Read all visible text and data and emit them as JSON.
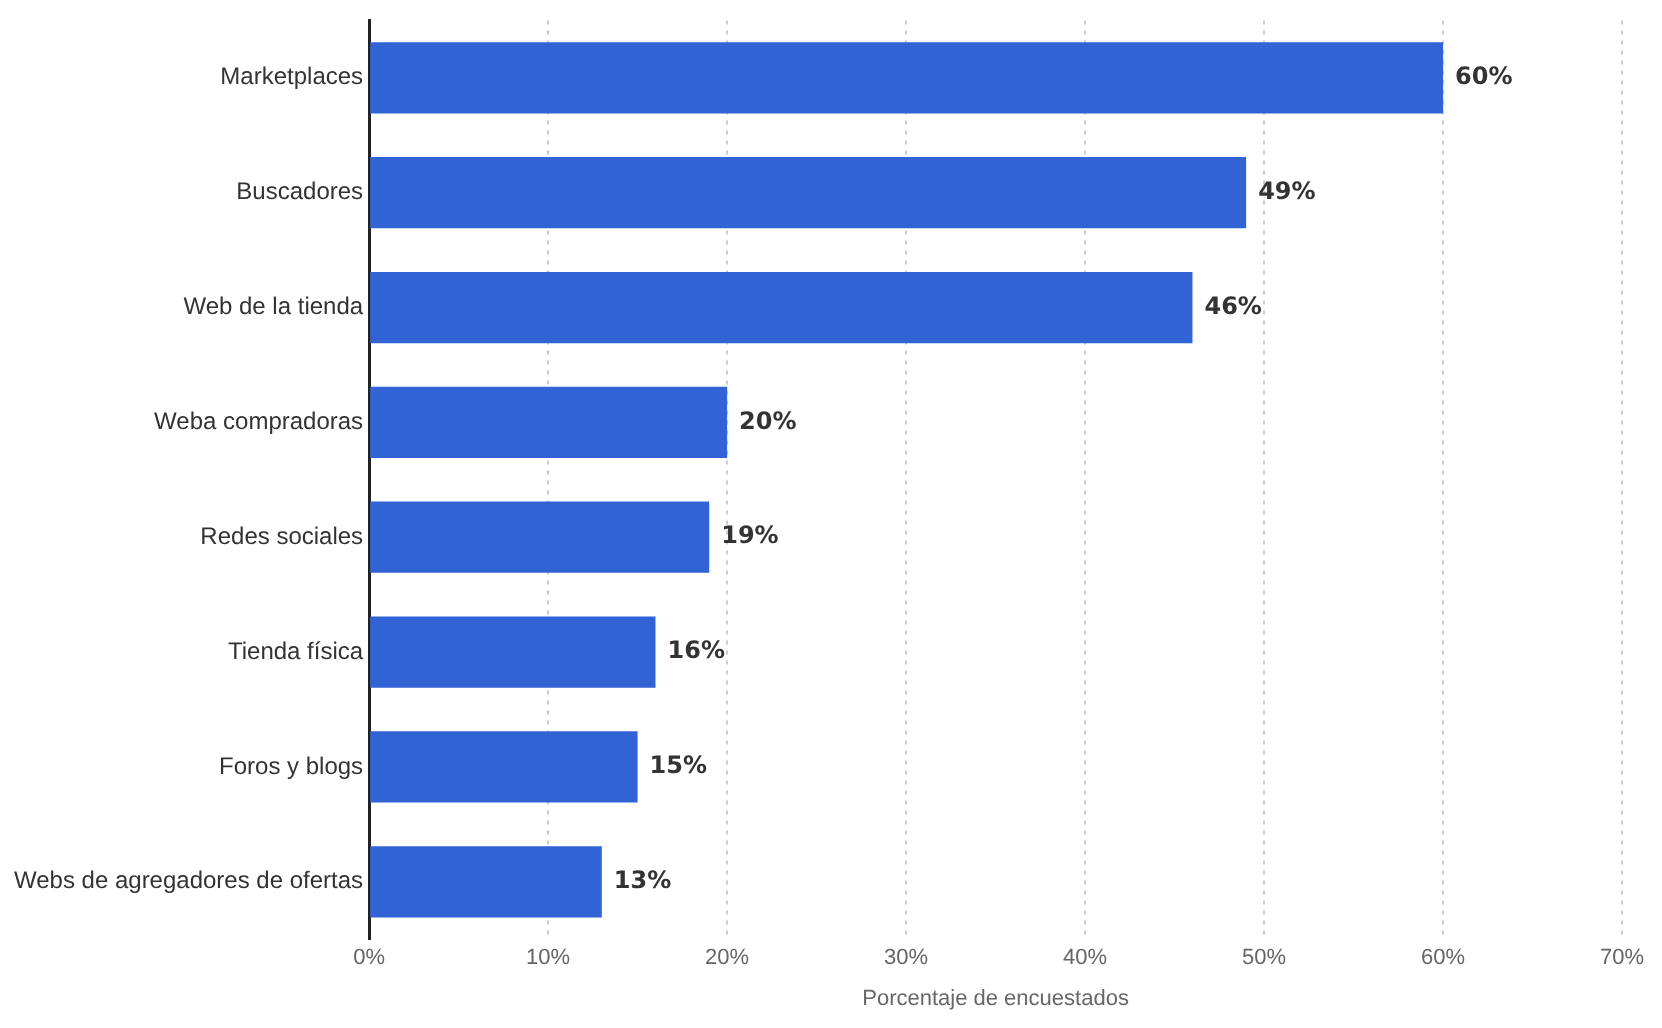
{
  "chart_data": {
    "type": "bar",
    "orientation": "horizontal",
    "xlabel": "Porcentaje de encuestados",
    "categories": [
      "Marketplaces",
      "Buscadores",
      "Web de la tienda",
      "Weba compradoras",
      "Redes sociales",
      "Tienda física",
      "Foros y blogs",
      "Webs de agregadores de ofertas"
    ],
    "values": [
      60,
      49,
      46,
      20,
      19,
      16,
      15,
      13
    ],
    "value_labels": [
      "60%",
      "49%",
      "46%",
      "20%",
      "19%",
      "16%",
      "15%",
      "13%"
    ],
    "color": "#3163d4",
    "xlim": [
      0,
      70
    ],
    "xticks": [
      {
        "value": 0,
        "label": "0%"
      },
      {
        "value": 10,
        "label": "10%"
      },
      {
        "value": 20,
        "label": "20%"
      },
      {
        "value": 30,
        "label": "30%"
      },
      {
        "value": 40,
        "label": "40%"
      },
      {
        "value": 50,
        "label": "50%"
      },
      {
        "value": 60,
        "label": "60%"
      },
      {
        "value": 70,
        "label": "70%"
      }
    ],
    "grid": "x",
    "legend": false
  }
}
